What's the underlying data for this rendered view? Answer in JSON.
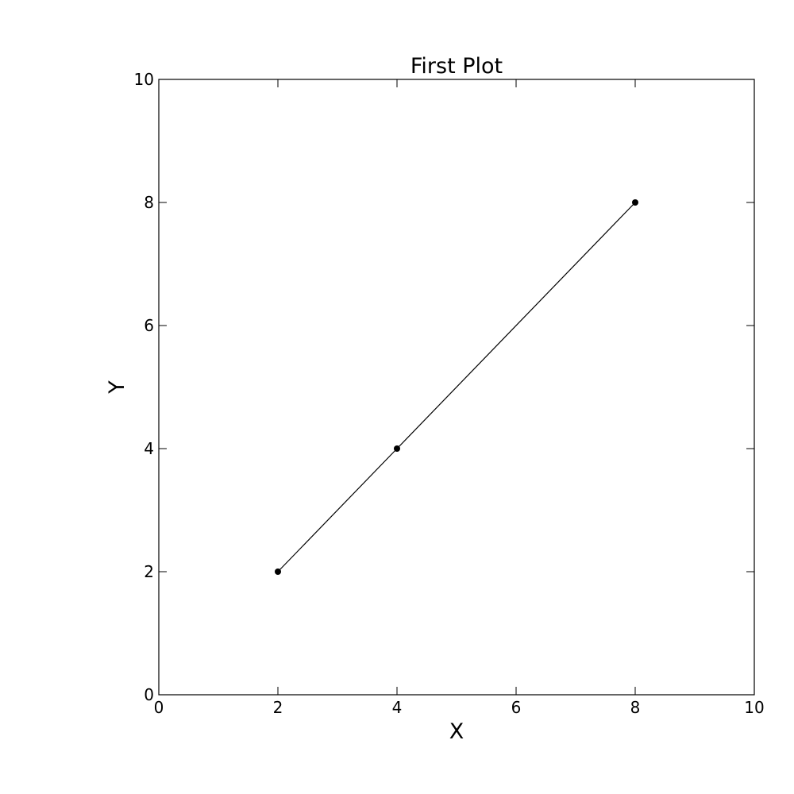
{
  "chart_data": {
    "type": "line",
    "title": "First Plot",
    "xlabel": "X",
    "ylabel": "Y",
    "xlim": [
      0,
      10
    ],
    "ylim": [
      0,
      10
    ],
    "x_ticks": [
      0,
      2,
      4,
      6,
      8,
      10
    ],
    "y_ticks": [
      0,
      2,
      4,
      6,
      8,
      10
    ],
    "x_tick_labels": [
      "0",
      "2",
      "4",
      "6",
      "8",
      "10"
    ],
    "y_tick_labels": [
      "0",
      "2",
      "4",
      "6",
      "8",
      "10"
    ],
    "grid": false,
    "series": [
      {
        "x": [
          2,
          4,
          8
        ],
        "y": [
          2,
          4,
          8
        ],
        "color": "#000000",
        "marker": "circle"
      }
    ]
  }
}
